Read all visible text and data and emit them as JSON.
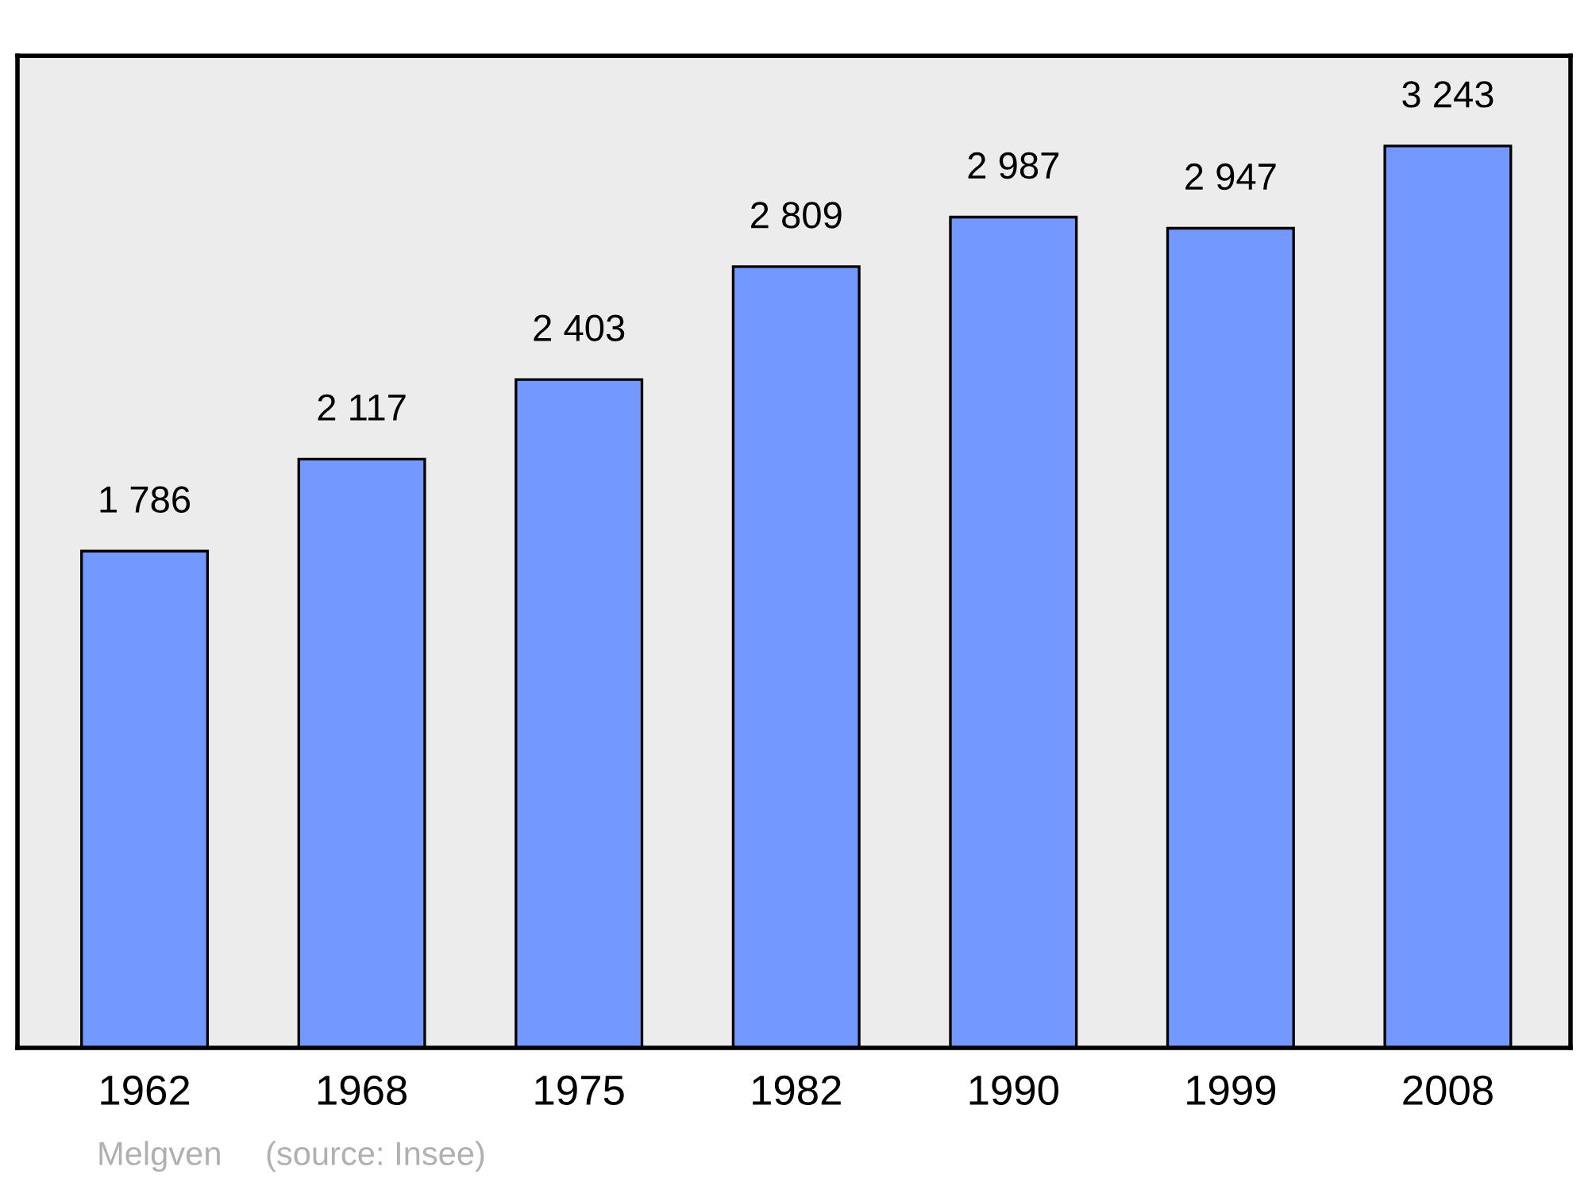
{
  "chart_data": {
    "type": "bar",
    "categories": [
      "1962",
      "1968",
      "1975",
      "1982",
      "1990",
      "1999",
      "2008"
    ],
    "values": [
      1786,
      2117,
      2403,
      2809,
      2987,
      2947,
      3243
    ],
    "value_labels": [
      "1 786",
      "2 117",
      "2 403",
      "2 809",
      "2 987",
      "2 947",
      "3 243"
    ],
    "color": "#7399ff",
    "tick_labels": "x",
    "grid": false,
    "legend": false,
    "annotations": [
      "Melgven",
      "(source: Insee)"
    ]
  }
}
